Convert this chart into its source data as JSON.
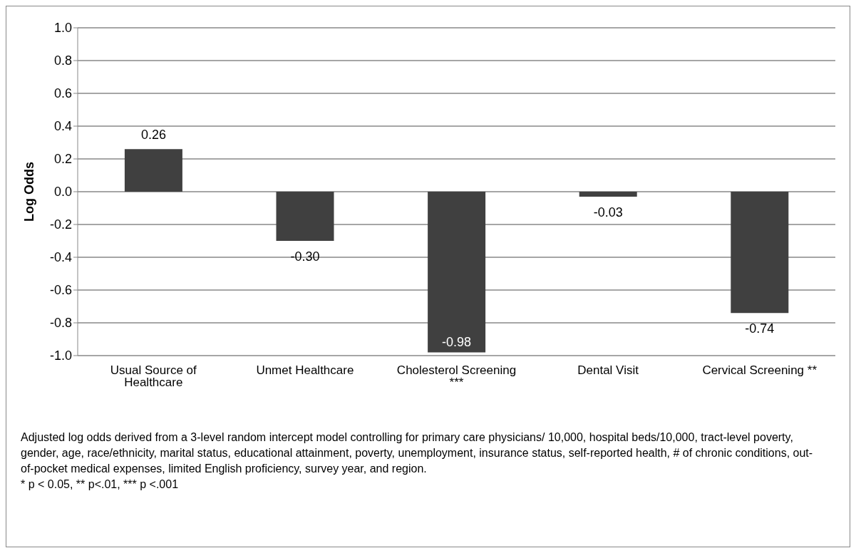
{
  "chart_data": {
    "type": "bar",
    "ylabel": "Log Odds",
    "categories": [
      "Usual Source of Healthcare",
      "Unmet Healthcare",
      "Cholesterol Screening ***",
      "Dental Visit",
      "Cervical Screening **"
    ],
    "values": [
      0.26,
      -0.3,
      -0.98,
      -0.03,
      -0.74
    ],
    "color": "#404040",
    "value_labels": [
      "0.26",
      "-0.30",
      "-0.98",
      "-0.03",
      "-0.74"
    ],
    "ylim": [
      -1.0,
      1.0
    ],
    "yticks": [
      {
        "value": -1.0,
        "label": "-1.0"
      },
      {
        "value": -0.8,
        "label": "-0.8"
      },
      {
        "value": -0.6,
        "label": "-0.6"
      },
      {
        "value": -0.4,
        "label": "-0.4"
      },
      {
        "value": -0.2,
        "label": "-0.2"
      },
      {
        "value": 0,
        "label": "0.0"
      },
      {
        "value": 0.2,
        "label": "0.2"
      },
      {
        "value": 0.4,
        "label": "0.4"
      },
      {
        "value": 0.6,
        "label": "0.6"
      },
      {
        "value": 0.8,
        "label": "0.8"
      },
      {
        "value": 1.0,
        "label": "1.0"
      }
    ],
    "grid": "y",
    "legend": false,
    "annotations": [
      "Adjusted log odds derived from a 3-level random intercept model controlling for primary care physicians/ 10,000, hospital beds/10,000, tract-level poverty, gender, age, race/ethnicity, marital status, educational attainment, poverty, unemployment, insurance status, self-reported health, # of chronic conditions, out-of-pocket medical expenses, limited English proficiency, survey year, and region.",
      "* p < 0.05, ** p<.01, *** p <.001"
    ]
  }
}
